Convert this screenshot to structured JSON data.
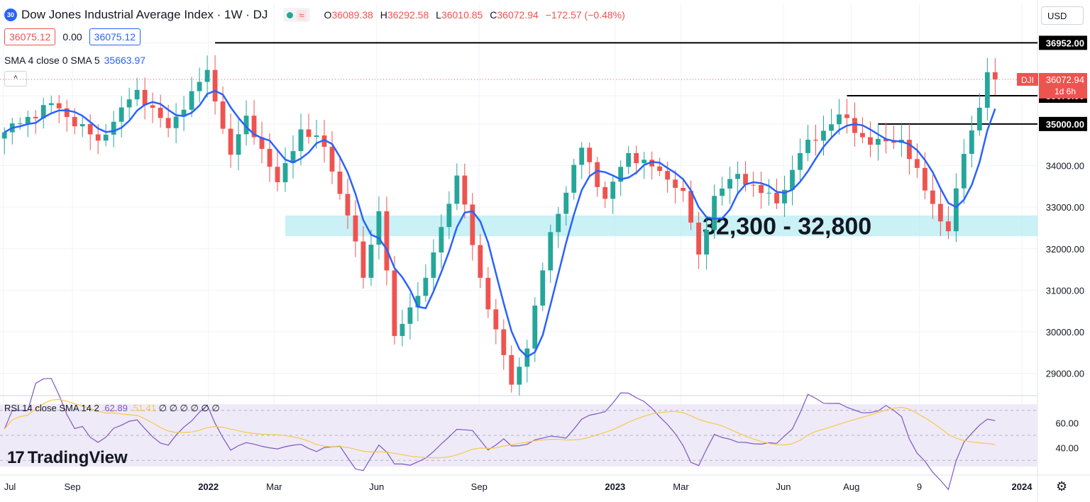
{
  "header": {
    "badge": "30",
    "title": "Dow Jones Industrial Average Index · 1W · DJ",
    "icon_names": [
      "live-dot-icon",
      "wave-icon"
    ],
    "wave_glyph": "≈",
    "ohlc": [
      {
        "k": "O",
        "v": "36089.38"
      },
      {
        "k": "H",
        "v": "36292.58"
      },
      {
        "k": "L",
        "v": "36010.85"
      },
      {
        "k": "C",
        "v": "36072.94"
      }
    ],
    "change": "−172.57 (−0.48%)"
  },
  "price_boxes": {
    "bid": "36075.12",
    "spread": "0.00",
    "ask": "36075.12"
  },
  "sma_legend": {
    "label": "SMA 4 close 0 SMA 5",
    "value": "35663.97"
  },
  "collapse_glyph": "^",
  "currency": "USD",
  "rsi_legend": {
    "label": "RSI 14 close SMA 14 2",
    "value": "62.89",
    "sma_value": "51.41",
    "extra": "∅ ∅ ∅ ∅ ∅ ∅"
  },
  "brand": {
    "mark": "17",
    "name": "TradingView"
  },
  "colors": {
    "up": "#26a69a",
    "down": "#ef5350",
    "sma": "#2962ff",
    "zone": "#b2ebf2",
    "rsi": "#7e57c2",
    "rsi_sma": "#f7c948"
  },
  "chart_data": {
    "type": "candlestick",
    "interval": "1W",
    "x_range": [
      "2021-06-28",
      "2024-01-15"
    ],
    "ylim": [
      28500,
      37300
    ],
    "y_ticks": [
      "36952.00",
      "35679.00",
      "35000.00",
      "34000.00",
      "33000.00",
      "32000.00",
      "31000.00",
      "30000.00",
      "29000.00"
    ],
    "x_ticks": [
      {
        "date": "2021-07-01",
        "label": "Jul",
        "bold": false
      },
      {
        "date": "2021-09-01",
        "label": "Sep",
        "bold": false
      },
      {
        "date": "2022-01-01",
        "label": "2022",
        "bold": true
      },
      {
        "date": "2022-03-01",
        "label": "Mar",
        "bold": false
      },
      {
        "date": "2022-06-01",
        "label": "Jun",
        "bold": false
      },
      {
        "date": "2022-09-01",
        "label": "Sep",
        "bold": false
      },
      {
        "date": "2023-01-01",
        "label": "2023",
        "bold": true
      },
      {
        "date": "2023-03-01",
        "label": "Mar",
        "bold": false
      },
      {
        "date": "2023-06-01",
        "label": "Jun",
        "bold": false
      },
      {
        "date": "2023-08-01",
        "label": "Aug",
        "bold": false
      },
      {
        "date": "2023-10-01",
        "label": "9",
        "bold": false
      },
      {
        "date": "2024-01-01",
        "label": "2024",
        "bold": true
      }
    ],
    "waypoints": [
      {
        "date": "2021-07-02",
        "close": 34800
      },
      {
        "date": "2021-08-13",
        "close": 35500
      },
      {
        "date": "2021-09-24",
        "close": 34600
      },
      {
        "date": "2021-10-29",
        "close": 35820
      },
      {
        "date": "2021-11-26",
        "close": 34900
      },
      {
        "date": "2021-12-31",
        "close": 36300
      },
      {
        "date": "2022-01-21",
        "close": 34260
      },
      {
        "date": "2022-02-04",
        "close": 35200
      },
      {
        "date": "2022-03-04",
        "close": 33600
      },
      {
        "date": "2022-03-25",
        "close": 34870
      },
      {
        "date": "2022-04-15",
        "close": 34450
      },
      {
        "date": "2022-05-06",
        "close": 32800
      },
      {
        "date": "2022-05-20",
        "close": 31300
      },
      {
        "date": "2022-06-03",
        "close": 32900
      },
      {
        "date": "2022-06-17",
        "close": 29900
      },
      {
        "date": "2022-07-15",
        "close": 31300
      },
      {
        "date": "2022-08-12",
        "close": 33760
      },
      {
        "date": "2022-09-02",
        "close": 31300
      },
      {
        "date": "2022-09-30",
        "close": 28730
      },
      {
        "date": "2022-10-14",
        "close": 29600
      },
      {
        "date": "2022-11-04",
        "close": 32400
      },
      {
        "date": "2022-12-02",
        "close": 34430
      },
      {
        "date": "2022-12-23",
        "close": 33200
      },
      {
        "date": "2023-01-13",
        "close": 34300
      },
      {
        "date": "2023-02-10",
        "close": 33870
      },
      {
        "date": "2023-03-03",
        "close": 33390
      },
      {
        "date": "2023-03-17",
        "close": 31860
      },
      {
        "date": "2023-03-31",
        "close": 33270
      },
      {
        "date": "2023-04-21",
        "close": 33800
      },
      {
        "date": "2023-05-26",
        "close": 33090
      },
      {
        "date": "2023-06-16",
        "close": 34300
      },
      {
        "date": "2023-07-21",
        "close": 35230
      },
      {
        "date": "2023-08-18",
        "close": 34500
      },
      {
        "date": "2023-09-15",
        "close": 34620
      },
      {
        "date": "2023-10-06",
        "close": 33400
      },
      {
        "date": "2023-10-27",
        "close": 32420
      },
      {
        "date": "2023-11-10",
        "close": 34280
      },
      {
        "date": "2023-11-24",
        "close": 35390
      },
      {
        "date": "2023-12-01",
        "close": 36245
      },
      {
        "date": "2023-12-08",
        "close": 36073
      }
    ],
    "sma": {
      "label": "SMA 4 close 0 SMA 5",
      "length": 5,
      "last": 35663.97
    },
    "horizontal_lines": [
      {
        "price": 36952.0,
        "label": "36952.00",
        "from_date": "2022-01-07"
      },
      {
        "price": 35679.0,
        "label": "35679.00",
        "from_date": "2023-07-28"
      },
      {
        "price": 35000.0,
        "label": "35000.00",
        "from_date": "2023-08-25"
      }
    ],
    "zone": {
      "low": 32300,
      "high": 32800,
      "from_date": "2022-03-11",
      "label": "32,300 - 32,800"
    },
    "last_price": {
      "symbol": "DJI",
      "price": "36072.94",
      "price_value": 36072.94,
      "countdown": "1d 6h"
    },
    "rsi": {
      "label": "RSI 14 close SMA 14 2",
      "value": 62.89,
      "sma_value": 51.41,
      "ticks": [
        "60.00",
        "40.00"
      ],
      "upper_band": 70,
      "lower_band": 30
    }
  }
}
